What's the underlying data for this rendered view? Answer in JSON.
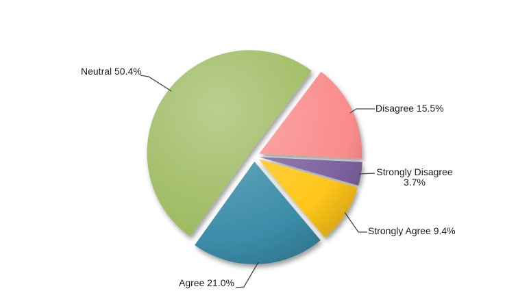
{
  "chart_data": {
    "type": "pie",
    "title": "",
    "direction": "clockwise",
    "start_angle_deg": 37,
    "exploded": true,
    "background_color": "#FFFFFF",
    "label_text_color": "#1A1A1A",
    "leader_line_color": "#404040",
    "slices": [
      {
        "label": "Disagree",
        "value": 15.5,
        "display_label": "Disagree 15.5%",
        "color": "#FA8C8C"
      },
      {
        "label": "Strongly Disagree",
        "value": 3.7,
        "display_label": "Strongly Disagree 3.7%",
        "color": "#7E63A0"
      },
      {
        "label": "Strongly Agree",
        "value": 9.4,
        "display_label": "Strongly Agree 9.4%",
        "color": "#FFC61A"
      },
      {
        "label": "Agree",
        "value": 21.0,
        "display_label": "Agree 21.0%",
        "color": "#3A8CA8"
      },
      {
        "label": "Neutral",
        "value": 50.4,
        "display_label": "Neutral 50.4%",
        "color": "#9CBA5F"
      }
    ]
  }
}
